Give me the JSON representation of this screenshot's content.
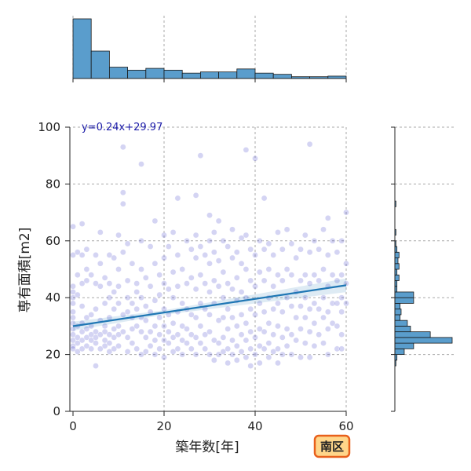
{
  "chart_data": {
    "type": "scatter",
    "xlabel": "築年数[年]",
    "ylabel": "専有面積[m2]",
    "xlim": [
      0,
      60
    ],
    "ylim": [
      0,
      100
    ],
    "x_ticks": [
      "0",
      "20",
      "40",
      "60"
    ],
    "y_ticks": [
      "0",
      "20",
      "40",
      "60",
      "80",
      "100"
    ],
    "grid": true,
    "annotation": "y=0.24x+29.97",
    "badge": "南区",
    "regression": {
      "slope": 0.24,
      "intercept": 29.97,
      "x_range": [
        0,
        60
      ]
    },
    "colors": {
      "point": "#3a3ac8",
      "line": "#1f77b4",
      "hist": "#5a9dcc",
      "annotation": "#1a1aa8",
      "badge_fill": "#ffd68a",
      "badge_edge": "#e8601c"
    },
    "points": [
      [
        0,
        65
      ],
      [
        0,
        55
      ],
      [
        0,
        44
      ],
      [
        0,
        42
      ],
      [
        0,
        40
      ],
      [
        0,
        38
      ],
      [
        0,
        35
      ],
      [
        0,
        33
      ],
      [
        0,
        31
      ],
      [
        0,
        29
      ],
      [
        0,
        27
      ],
      [
        0,
        25
      ],
      [
        0,
        23
      ],
      [
        0,
        22
      ],
      [
        1,
        56
      ],
      [
        1,
        48
      ],
      [
        1,
        41
      ],
      [
        1,
        30
      ],
      [
        1,
        26
      ],
      [
        1,
        24
      ],
      [
        1,
        21
      ],
      [
        2,
        66
      ],
      [
        2,
        55
      ],
      [
        2,
        45
      ],
      [
        2,
        37
      ],
      [
        2,
        31
      ],
      [
        2,
        28
      ],
      [
        2,
        25
      ],
      [
        2,
        22
      ],
      [
        3,
        57
      ],
      [
        3,
        50
      ],
      [
        3,
        46
      ],
      [
        3,
        33
      ],
      [
        3,
        29
      ],
      [
        3,
        26
      ],
      [
        3,
        23
      ],
      [
        4,
        48
      ],
      [
        4,
        34
      ],
      [
        4,
        30
      ],
      [
        4,
        27
      ],
      [
        4,
        25
      ],
      [
        4,
        22
      ],
      [
        5,
        55
      ],
      [
        5,
        45
      ],
      [
        5,
        36
      ],
      [
        5,
        28
      ],
      [
        5,
        26
      ],
      [
        5,
        24
      ],
      [
        5,
        16
      ],
      [
        6,
        63
      ],
      [
        6,
        52
      ],
      [
        6,
        44
      ],
      [
        6,
        32
      ],
      [
        6,
        27
      ],
      [
        6,
        22
      ],
      [
        7,
        47
      ],
      [
        7,
        38
      ],
      [
        7,
        30
      ],
      [
        7,
        28
      ],
      [
        7,
        25
      ],
      [
        7,
        23
      ],
      [
        8,
        55
      ],
      [
        8,
        45
      ],
      [
        8,
        40
      ],
      [
        8,
        33
      ],
      [
        8,
        27
      ],
      [
        8,
        24
      ],
      [
        8,
        21
      ],
      [
        9,
        54
      ],
      [
        9,
        42
      ],
      [
        9,
        36
      ],
      [
        9,
        29
      ],
      [
        9,
        26
      ],
      [
        9,
        22
      ],
      [
        10,
        62
      ],
      [
        10,
        50
      ],
      [
        10,
        44
      ],
      [
        10,
        38
      ],
      [
        10,
        30
      ],
      [
        10,
        27
      ],
      [
        10,
        23
      ],
      [
        11,
        93
      ],
      [
        11,
        77
      ],
      [
        11,
        73
      ],
      [
        11,
        56
      ],
      [
        11,
        34
      ],
      [
        11,
        28
      ],
      [
        12,
        59
      ],
      [
        12,
        46
      ],
      [
        12,
        40
      ],
      [
        12,
        35
      ],
      [
        12,
        26
      ],
      [
        12,
        21
      ],
      [
        13,
        52
      ],
      [
        13,
        38
      ],
      [
        13,
        33
      ],
      [
        13,
        29
      ],
      [
        13,
        24
      ],
      [
        14,
        45
      ],
      [
        14,
        42
      ],
      [
        14,
        36
      ],
      [
        14,
        30
      ],
      [
        14,
        22
      ],
      [
        15,
        87
      ],
      [
        15,
        60
      ],
      [
        15,
        50
      ],
      [
        15,
        40
      ],
      [
        15,
        33
      ],
      [
        15,
        28
      ],
      [
        15,
        20
      ],
      [
        16,
        47
      ],
      [
        16,
        37
      ],
      [
        16,
        32
      ],
      [
        16,
        26
      ],
      [
        16,
        21
      ],
      [
        17,
        58
      ],
      [
        17,
        44
      ],
      [
        17,
        35
      ],
      [
        17,
        28
      ],
      [
        17,
        23
      ],
      [
        18,
        67
      ],
      [
        18,
        52
      ],
      [
        18,
        39
      ],
      [
        18,
        30
      ],
      [
        18,
        25
      ],
      [
        18,
        20
      ],
      [
        19,
        48
      ],
      [
        19,
        41
      ],
      [
        19,
        33
      ],
      [
        19,
        27
      ],
      [
        19,
        22
      ],
      [
        20,
        62
      ],
      [
        20,
        54
      ],
      [
        20,
        45
      ],
      [
        20,
        36
      ],
      [
        20,
        30
      ],
      [
        20,
        25
      ],
      [
        20,
        19
      ],
      [
        21,
        58
      ],
      [
        21,
        43
      ],
      [
        21,
        34
      ],
      [
        21,
        28
      ],
      [
        21,
        24
      ],
      [
        22,
        63
      ],
      [
        22,
        49
      ],
      [
        22,
        40
      ],
      [
        22,
        31
      ],
      [
        22,
        26
      ],
      [
        22,
        21
      ],
      [
        23,
        75
      ],
      [
        23,
        55
      ],
      [
        23,
        44
      ],
      [
        23,
        35
      ],
      [
        23,
        27
      ],
      [
        23,
        22
      ],
      [
        24,
        50
      ],
      [
        24,
        38
      ],
      [
        24,
        30
      ],
      [
        24,
        25
      ],
      [
        24,
        20
      ],
      [
        25,
        60
      ],
      [
        25,
        45
      ],
      [
        25,
        36
      ],
      [
        25,
        29
      ],
      [
        25,
        24
      ],
      [
        26,
        57
      ],
      [
        26,
        47
      ],
      [
        26,
        34
      ],
      [
        26,
        27
      ],
      [
        26,
        22
      ],
      [
        27,
        76
      ],
      [
        27,
        62
      ],
      [
        27,
        54
      ],
      [
        27,
        43
      ],
      [
        27,
        33
      ],
      [
        27,
        26
      ],
      [
        27,
        20
      ],
      [
        28,
        90
      ],
      [
        28,
        58
      ],
      [
        28,
        48
      ],
      [
        28,
        38
      ],
      [
        28,
        30
      ],
      [
        28,
        24
      ],
      [
        29,
        55
      ],
      [
        29,
        45
      ],
      [
        29,
        36
      ],
      [
        29,
        27
      ],
      [
        29,
        22
      ],
      [
        30,
        69
      ],
      [
        30,
        60
      ],
      [
        30,
        52
      ],
      [
        30,
        42
      ],
      [
        30,
        34
      ],
      [
        30,
        28
      ],
      [
        30,
        20
      ],
      [
        31,
        63
      ],
      [
        31,
        56
      ],
      [
        31,
        46
      ],
      [
        31,
        38
      ],
      [
        31,
        25
      ],
      [
        31,
        18
      ],
      [
        32,
        67
      ],
      [
        32,
        53
      ],
      [
        32,
        44
      ],
      [
        32,
        32
      ],
      [
        32,
        24
      ],
      [
        32,
        20
      ],
      [
        33,
        60
      ],
      [
        33,
        49
      ],
      [
        33,
        40
      ],
      [
        33,
        33
      ],
      [
        33,
        26
      ],
      [
        33,
        21
      ],
      [
        34,
        58
      ],
      [
        34,
        45
      ],
      [
        34,
        36
      ],
      [
        34,
        29
      ],
      [
        34,
        22
      ],
      [
        34,
        17
      ],
      [
        35,
        64
      ],
      [
        35,
        54
      ],
      [
        35,
        43
      ],
      [
        35,
        33
      ],
      [
        35,
        25
      ],
      [
        35,
        20
      ],
      [
        36,
        56
      ],
      [
        36,
        47
      ],
      [
        36,
        39
      ],
      [
        36,
        30
      ],
      [
        36,
        23
      ],
      [
        36,
        18
      ],
      [
        37,
        61
      ],
      [
        37,
        52
      ],
      [
        37,
        42
      ],
      [
        37,
        34
      ],
      [
        37,
        27
      ],
      [
        37,
        21
      ],
      [
        38,
        92
      ],
      [
        38,
        62
      ],
      [
        38,
        50
      ],
      [
        38,
        40
      ],
      [
        38,
        31
      ],
      [
        38,
        25
      ],
      [
        38,
        19
      ],
      [
        39,
        57
      ],
      [
        39,
        46
      ],
      [
        39,
        36
      ],
      [
        39,
        28
      ],
      [
        39,
        22
      ],
      [
        39,
        16
      ],
      [
        40,
        89
      ],
      [
        40,
        55
      ],
      [
        40,
        44
      ],
      [
        40,
        34
      ],
      [
        40,
        26
      ],
      [
        40,
        20
      ],
      [
        41,
        60
      ],
      [
        41,
        49
      ],
      [
        41,
        38
      ],
      [
        41,
        29
      ],
      [
        41,
        23
      ],
      [
        41,
        17
      ],
      [
        42,
        75
      ],
      [
        42,
        57
      ],
      [
        42,
        46
      ],
      [
        42,
        35
      ],
      [
        42,
        28
      ],
      [
        42,
        22
      ],
      [
        43,
        59
      ],
      [
        43,
        50
      ],
      [
        43,
        40
      ],
      [
        43,
        31
      ],
      [
        43,
        24
      ],
      [
        43,
        19
      ],
      [
        44,
        55
      ],
      [
        44,
        44
      ],
      [
        44,
        36
      ],
      [
        44,
        27
      ],
      [
        44,
        21
      ],
      [
        45,
        63
      ],
      [
        45,
        48
      ],
      [
        45,
        38
      ],
      [
        45,
        30
      ],
      [
        45,
        22
      ],
      [
        45,
        17
      ],
      [
        46,
        57
      ],
      [
        46,
        46
      ],
      [
        46,
        35
      ],
      [
        46,
        26
      ],
      [
        46,
        20
      ],
      [
        47,
        64
      ],
      [
        47,
        50
      ],
      [
        47,
        40
      ],
      [
        47,
        29
      ],
      [
        47,
        23
      ],
      [
        48,
        59
      ],
      [
        48,
        48
      ],
      [
        48,
        37
      ],
      [
        48,
        27
      ],
      [
        48,
        20
      ],
      [
        49,
        54
      ],
      [
        49,
        42
      ],
      [
        49,
        33
      ],
      [
        49,
        25
      ],
      [
        50,
        57
      ],
      [
        50,
        46
      ],
      [
        50,
        37
      ],
      [
        50,
        29
      ],
      [
        50,
        19
      ],
      [
        51,
        62
      ],
      [
        51,
        48
      ],
      [
        51,
        40
      ],
      [
        51,
        33
      ],
      [
        51,
        24
      ],
      [
        52,
        94
      ],
      [
        52,
        56
      ],
      [
        52,
        45
      ],
      [
        52,
        36
      ],
      [
        52,
        28
      ],
      [
        52,
        19
      ],
      [
        53,
        60
      ],
      [
        53,
        48
      ],
      [
        53,
        38
      ],
      [
        53,
        31
      ],
      [
        53,
        23
      ],
      [
        54,
        57
      ],
      [
        54,
        46
      ],
      [
        54,
        36
      ],
      [
        54,
        27
      ],
      [
        55,
        64
      ],
      [
        55,
        50
      ],
      [
        55,
        40
      ],
      [
        55,
        33
      ],
      [
        55,
        24
      ],
      [
        56,
        68
      ],
      [
        56,
        55
      ],
      [
        56,
        44
      ],
      [
        56,
        35
      ],
      [
        56,
        29
      ],
      [
        56,
        20
      ],
      [
        57,
        60
      ],
      [
        57,
        48
      ],
      [
        57,
        38
      ],
      [
        57,
        31
      ],
      [
        58,
        56
      ],
      [
        58,
        46
      ],
      [
        58,
        38
      ],
      [
        58,
        30
      ],
      [
        58,
        22
      ],
      [
        59,
        60
      ],
      [
        59,
        48
      ],
      [
        59,
        40
      ],
      [
        59,
        35
      ],
      [
        59,
        27
      ],
      [
        59,
        22
      ],
      [
        60,
        70
      ],
      [
        60,
        52
      ],
      [
        60,
        45
      ],
      [
        60,
        38
      ]
    ],
    "hist_x": {
      "bin_edges": [
        0,
        4,
        8,
        12,
        16,
        20,
        24,
        28,
        32,
        36,
        40,
        44,
        48,
        52,
        56,
        60
      ],
      "counts": [
        100,
        46,
        19,
        14,
        17,
        14,
        9,
        11,
        11,
        16,
        9,
        7,
        3,
        3,
        4
      ]
    },
    "hist_y": {
      "bin_edges": [
        0,
        2,
        4,
        6,
        8,
        10,
        12,
        14,
        16,
        18,
        20,
        22,
        24,
        26,
        28,
        30,
        32,
        34,
        36,
        38,
        40,
        42,
        44,
        46,
        48,
        50,
        52,
        54,
        56,
        58,
        60,
        62,
        64,
        66,
        68,
        70,
        72,
        74,
        76,
        78,
        80,
        82,
        84,
        86,
        88,
        90,
        92,
        94,
        96,
        98,
        100
      ],
      "counts": [
        0,
        0,
        0,
        0,
        0,
        0,
        0,
        0,
        1,
        2,
        9,
        18,
        55,
        34,
        15,
        12,
        5,
        6,
        5,
        18,
        18,
        2,
        2,
        4,
        2,
        4,
        3,
        4,
        2,
        1,
        0,
        1,
        0,
        0,
        0,
        0,
        1,
        0,
        0,
        0,
        0,
        0,
        0,
        0,
        0,
        0,
        0,
        0,
        0,
        0
      ]
    }
  }
}
